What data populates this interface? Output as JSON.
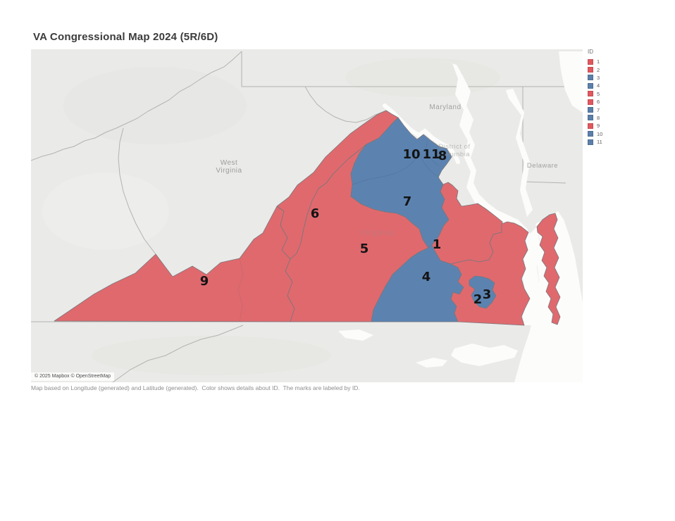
{
  "title": "VA Congressional Map 2024 (5R/6D)",
  "legend": {
    "title": "ID",
    "items": [
      {
        "id": "1",
        "color": "#e0585e"
      },
      {
        "id": "2",
        "color": "#e0585e"
      },
      {
        "id": "3",
        "color": "#5b7fa9"
      },
      {
        "id": "4",
        "color": "#5b7fa9"
      },
      {
        "id": "5",
        "color": "#e0585e"
      },
      {
        "id": "6",
        "color": "#e0585e"
      },
      {
        "id": "7",
        "color": "#5b7fa9"
      },
      {
        "id": "8",
        "color": "#5b7fa9"
      },
      {
        "id": "9",
        "color": "#e0585e"
      },
      {
        "id": "10",
        "color": "#5b7fa9"
      },
      {
        "id": "11",
        "color": "#5b7fa9"
      }
    ]
  },
  "map": {
    "attribution": "© 2025 Mapbox © OpenStreetMap",
    "party_fill": {
      "R": "#e0696e",
      "D": "#5c83b0"
    },
    "districts": [
      {
        "id": "1",
        "party": "R"
      },
      {
        "id": "2",
        "party": "R"
      },
      {
        "id": "3",
        "party": "D"
      },
      {
        "id": "4",
        "party": "D"
      },
      {
        "id": "5",
        "party": "R"
      },
      {
        "id": "6",
        "party": "R"
      },
      {
        "id": "7",
        "party": "D"
      },
      {
        "id": "8",
        "party": "D"
      },
      {
        "id": "9",
        "party": "R"
      },
      {
        "id": "10",
        "party": "D"
      },
      {
        "id": "11",
        "party": "D"
      }
    ],
    "basemap_labels": [
      {
        "name": "west-virginia",
        "lines": [
          "West",
          "Virginia"
        ]
      },
      {
        "name": "maryland",
        "lines": [
          "Maryland"
        ]
      },
      {
        "name": "delaware",
        "lines": [
          "Delaware"
        ]
      },
      {
        "name": "district-of-columbia",
        "lines": [
          "District of",
          "Columbia"
        ]
      },
      {
        "name": "virginia",
        "lines": [
          "Virginia"
        ]
      }
    ]
  },
  "caption": "Map based on Longitude (generated) and Latitude (generated).  Color shows details about ID.  The marks are labeled by ID."
}
